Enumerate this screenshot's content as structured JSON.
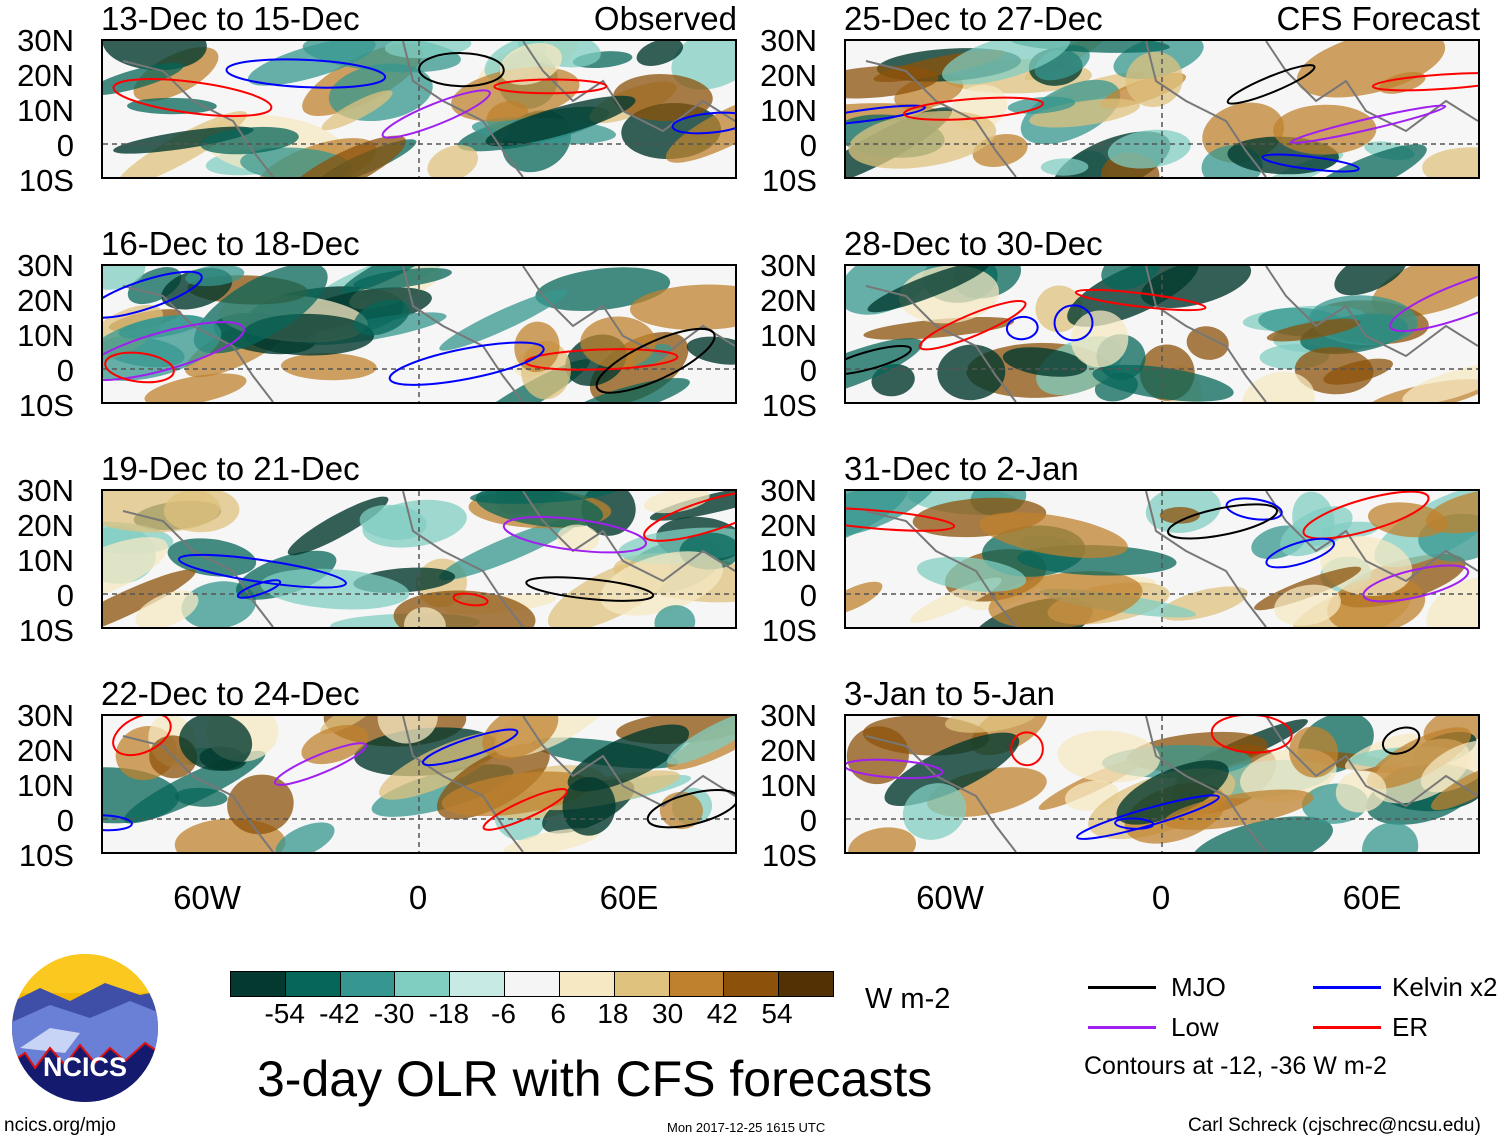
{
  "panels": [
    {
      "title": "13-Dec to 15-Dec",
      "label": "Observed",
      "column": "left"
    },
    {
      "title": "16-Dec to 18-Dec",
      "label": "",
      "column": "left"
    },
    {
      "title": "19-Dec to 21-Dec",
      "label": "",
      "column": "left"
    },
    {
      "title": "22-Dec to 24-Dec",
      "label": "",
      "column": "left"
    },
    {
      "title": "25-Dec to 27-Dec",
      "label": "CFS Forecast",
      "column": "right"
    },
    {
      "title": "28-Dec to 30-Dec",
      "label": "",
      "column": "right"
    },
    {
      "title": "31-Dec to 2-Jan",
      "label": "",
      "column": "right"
    },
    {
      "title": "3-Jan to 5-Jan",
      "label": "",
      "column": "right"
    }
  ],
  "lat_labels": [
    "30N",
    "20N",
    "10N",
    "0",
    "10S"
  ],
  "lon_labels": [
    "60W",
    "0",
    "60E"
  ],
  "colorbar": {
    "colors": [
      "#03392e",
      "#07665a",
      "#35978f",
      "#80cdc1",
      "#c7eae5",
      "#f5f5f5",
      "#f6e8c3",
      "#dfc27d",
      "#bf812d",
      "#8c510a",
      "#543005"
    ],
    "labels": [
      "-54",
      "-42",
      "-30",
      "-18",
      "-6",
      "6",
      "18",
      "30",
      "42",
      "54"
    ],
    "units": "W m-2"
  },
  "legend": {
    "items": [
      {
        "label": "MJO",
        "color": "#000000"
      },
      {
        "label": "Kelvin x2",
        "color": "#0000ff"
      },
      {
        "label": "Low",
        "color": "#a020f0"
      },
      {
        "label": "ER",
        "color": "#ff0000"
      }
    ],
    "note": "Contours at -12, -36 W m-2"
  },
  "title": "3-day OLR with CFS forecasts",
  "logo": {
    "text": "NCICS"
  },
  "footer": {
    "url": "ncics.org/mjo",
    "timestamp": "Mon 2017-12-25 1615 UTC",
    "author": "Carl Schreck (cjschrec@ncsu.edu)"
  }
}
